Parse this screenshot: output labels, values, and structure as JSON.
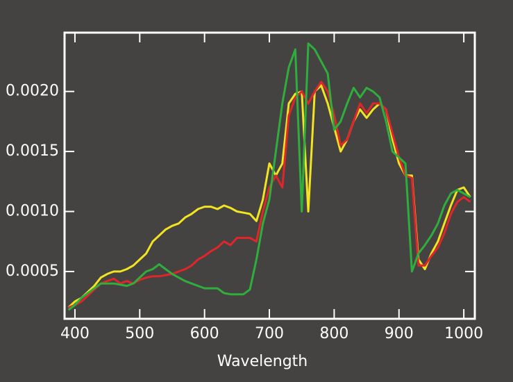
{
  "chart_data": {
    "type": "line",
    "x_label": "Wavelength",
    "x": [
      390,
      400,
      410,
      420,
      430,
      440,
      450,
      460,
      470,
      480,
      490,
      500,
      510,
      520,
      530,
      540,
      550,
      560,
      570,
      580,
      590,
      600,
      610,
      620,
      630,
      640,
      650,
      660,
      670,
      680,
      690,
      700,
      710,
      720,
      730,
      740,
      750,
      760,
      770,
      780,
      790,
      800,
      810,
      820,
      830,
      840,
      850,
      860,
      870,
      880,
      890,
      900,
      910,
      920,
      930,
      940,
      950,
      960,
      970,
      980,
      990,
      1000,
      1010
    ],
    "series": [
      {
        "color": "#f2e421",
        "values": [
          0.0002,
          0.00025,
          0.00028,
          0.00033,
          0.00038,
          0.00045,
          0.00048,
          0.0005,
          0.0005,
          0.00052,
          0.00055,
          0.0006,
          0.00065,
          0.00075,
          0.0008,
          0.00085,
          0.00088,
          0.0009,
          0.00095,
          0.00098,
          0.00102,
          0.00104,
          0.00104,
          0.00102,
          0.00105,
          0.00103,
          0.001,
          0.00099,
          0.00098,
          0.00092,
          0.0011,
          0.0014,
          0.0013,
          0.0014,
          0.0019,
          0.00198,
          0.002,
          0.001,
          0.002,
          0.00205,
          0.0019,
          0.0017,
          0.0015,
          0.0016,
          0.00175,
          0.00185,
          0.00178,
          0.00185,
          0.0019,
          0.00185,
          0.0016,
          0.0014,
          0.0013,
          0.0013,
          0.0006,
          0.00052,
          0.00065,
          0.00075,
          0.0009,
          0.00105,
          0.00118,
          0.0012,
          0.00112
        ]
      },
      {
        "color": "#e0262a",
        "values": [
          0.0002,
          0.00022,
          0.00025,
          0.0003,
          0.00035,
          0.0004,
          0.00042,
          0.00044,
          0.0004,
          0.00042,
          0.0004,
          0.00043,
          0.00045,
          0.00046,
          0.00046,
          0.00047,
          0.00048,
          0.0005,
          0.00052,
          0.00055,
          0.0006,
          0.00063,
          0.00067,
          0.0007,
          0.00075,
          0.00072,
          0.00078,
          0.00078,
          0.00078,
          0.00075,
          0.001,
          0.0012,
          0.0013,
          0.0012,
          0.0018,
          0.00195,
          0.002,
          0.0019,
          0.002,
          0.00208,
          0.002,
          0.0018,
          0.00155,
          0.0016,
          0.00175,
          0.0019,
          0.00182,
          0.0019,
          0.0019,
          0.00185,
          0.00165,
          0.00145,
          0.0013,
          0.00128,
          0.00055,
          0.00055,
          0.00063,
          0.0007,
          0.00082,
          0.00098,
          0.00108,
          0.00112,
          0.00108
        ]
      },
      {
        "color": "#2fae3e",
        "values": [
          0.00018,
          0.00022,
          0.00028,
          0.00032,
          0.00036,
          0.0004,
          0.0004,
          0.0004,
          0.00039,
          0.00038,
          0.0004,
          0.00045,
          0.0005,
          0.00052,
          0.00056,
          0.00052,
          0.00048,
          0.00045,
          0.00042,
          0.0004,
          0.00038,
          0.00036,
          0.00036,
          0.00036,
          0.00032,
          0.00031,
          0.00031,
          0.00031,
          0.00035,
          0.0006,
          0.0009,
          0.0011,
          0.0015,
          0.0019,
          0.0022,
          0.00235,
          0.001,
          0.0024,
          0.00235,
          0.00225,
          0.00215,
          0.00168,
          0.00175,
          0.0019,
          0.00203,
          0.00195,
          0.00203,
          0.002,
          0.00195,
          0.00175,
          0.0015,
          0.00145,
          0.0014,
          0.0005,
          0.00065,
          0.00072,
          0.0008,
          0.0009,
          0.00105,
          0.00115,
          0.00118,
          0.00115,
          0.00112
        ]
      }
    ],
    "xlim": [
      384,
      1017
    ],
    "ylim": [
      0.000106,
      0.00249
    ],
    "xticks": [
      400,
      500,
      600,
      700,
      800,
      900,
      1000
    ],
    "yticks": [
      {
        "value": 0.0005,
        "label": "0.0005"
      },
      {
        "value": 0.001,
        "label": "0.0010"
      },
      {
        "value": 0.0015,
        "label": "0.0015"
      },
      {
        "value": 0.002,
        "label": "0.0020"
      }
    ]
  }
}
